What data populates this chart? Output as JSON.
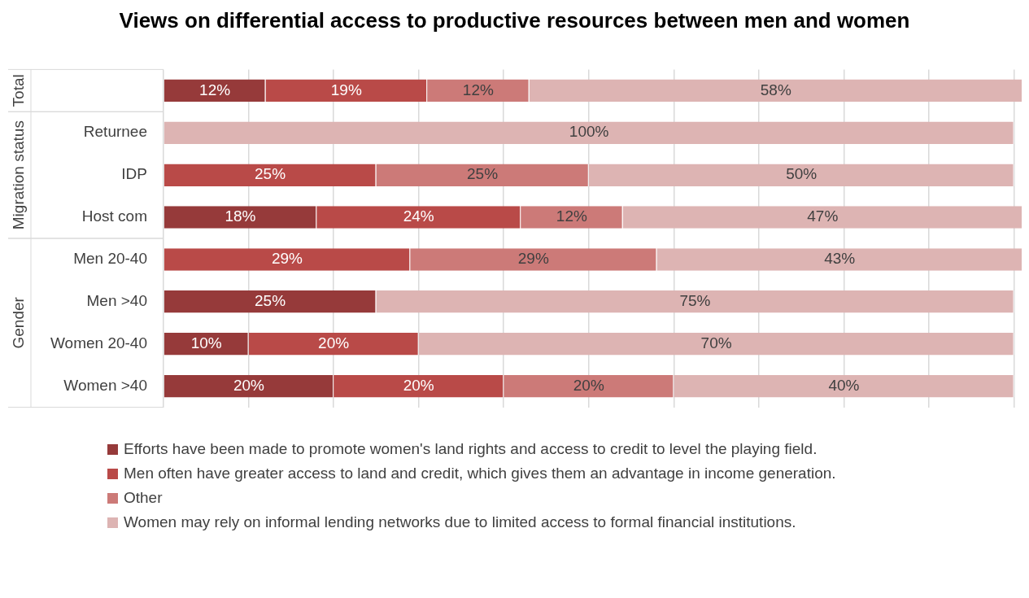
{
  "chart_data": {
    "type": "bar",
    "orientation": "horizontal",
    "stacked": true,
    "title": "Views on differential access to productive resources between men and women",
    "categories": [
      null,
      "Returnee",
      "IDP",
      "Host com",
      "Men 20-40",
      "Men >40",
      "Women 20-40",
      "Women >40"
    ],
    "annotations": [
      "Total",
      "Migration status",
      "Gender"
    ],
    "series": [
      {
        "name": "Efforts have been made to promote women's land rights and access to credit to level the playing field.",
        "color": "#963a3a",
        "values": [
          12,
          null,
          null,
          18,
          null,
          25,
          10,
          20
        ],
        "value_labels": [
          "12%",
          null,
          null,
          "18%",
          null,
          "25%",
          "10%",
          "20%"
        ]
      },
      {
        "name": "Men often have greater access to land and credit, which gives them an advantage in income generation.",
        "color": "#b94a48",
        "values": [
          19,
          null,
          25,
          24,
          29,
          null,
          20,
          20
        ],
        "value_labels": [
          "19%",
          null,
          "25%",
          "24%",
          "29%",
          null,
          "20%",
          "20%"
        ]
      },
      {
        "name": "Other",
        "color": "#cc7a78",
        "values": [
          12,
          null,
          25,
          12,
          29,
          null,
          null,
          20
        ],
        "value_labels": [
          "12%",
          null,
          "25%",
          "12%",
          "29%",
          null,
          null,
          "20%"
        ]
      },
      {
        "name": "Women may rely on informal lending networks due to limited access to formal financial institutions.",
        "color": "#ddb4b3",
        "values": [
          58,
          100,
          50,
          47,
          43,
          75,
          70,
          40
        ],
        "value_labels": [
          "58%",
          "100%",
          "50%",
          "47%",
          "43%",
          "75%",
          "70%",
          "40%"
        ]
      }
    ],
    "xlim": [
      0,
      101
    ],
    "xticks": [
      {
        "value": 0,
        "label": null
      },
      {
        "value": 10,
        "label": null
      },
      {
        "value": 20,
        "label": null
      },
      {
        "value": 30,
        "label": null
      },
      {
        "value": 40,
        "label": null
      },
      {
        "value": 50,
        "label": null
      },
      {
        "value": 60,
        "label": null
      },
      {
        "value": 70,
        "label": null
      },
      {
        "value": 80,
        "label": null
      },
      {
        "value": 90,
        "label": null
      },
      {
        "value": 100,
        "label": null
      }
    ],
    "tick_labels": "y",
    "grid": "x",
    "legend": "bottom"
  }
}
